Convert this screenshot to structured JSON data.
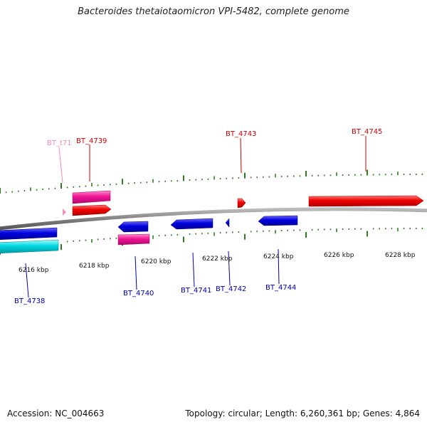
{
  "title": "Bacteroides thetaiotaomicron VPI-5482, complete genome",
  "footer": {
    "accession": "Accession: NC_004663",
    "summary": "Topology: circular; Length: 6,260,361 bp; Genes: 4,864"
  },
  "colors": {
    "forward_cds": "#ee0000",
    "reverse_cds": "#0000dd",
    "rna": "#ee1493",
    "trna": "#f08cc0",
    "cyan_track": "#00d8e0",
    "backbone": "#888888",
    "ticks": "#2e7d1e"
  },
  "scale": {
    "labels": [
      "6216 kbp",
      "6218 kbp",
      "6220 kbp",
      "6222 kbp",
      "6224 kbp",
      "6226 kbp",
      "6228 kbp"
    ]
  },
  "genes": [
    {
      "label": "BT_t71",
      "strand": "forward",
      "type": "tRNA"
    },
    {
      "label": "BT_4739",
      "strand": "forward",
      "type": "CDS"
    },
    {
      "label": "BT_4743",
      "strand": "forward",
      "type": "CDS"
    },
    {
      "label": "BT_4745",
      "strand": "forward",
      "type": "CDS"
    },
    {
      "label": "BT_4738",
      "strand": "reverse",
      "type": "CDS"
    },
    {
      "label": "BT_4740",
      "strand": "reverse",
      "type": "CDS"
    },
    {
      "label": "BT_4741",
      "strand": "reverse",
      "type": "CDS"
    },
    {
      "label": "BT_4742",
      "strand": "reverse",
      "type": "CDS"
    },
    {
      "label": "BT_4744",
      "strand": "reverse",
      "type": "CDS"
    }
  ]
}
